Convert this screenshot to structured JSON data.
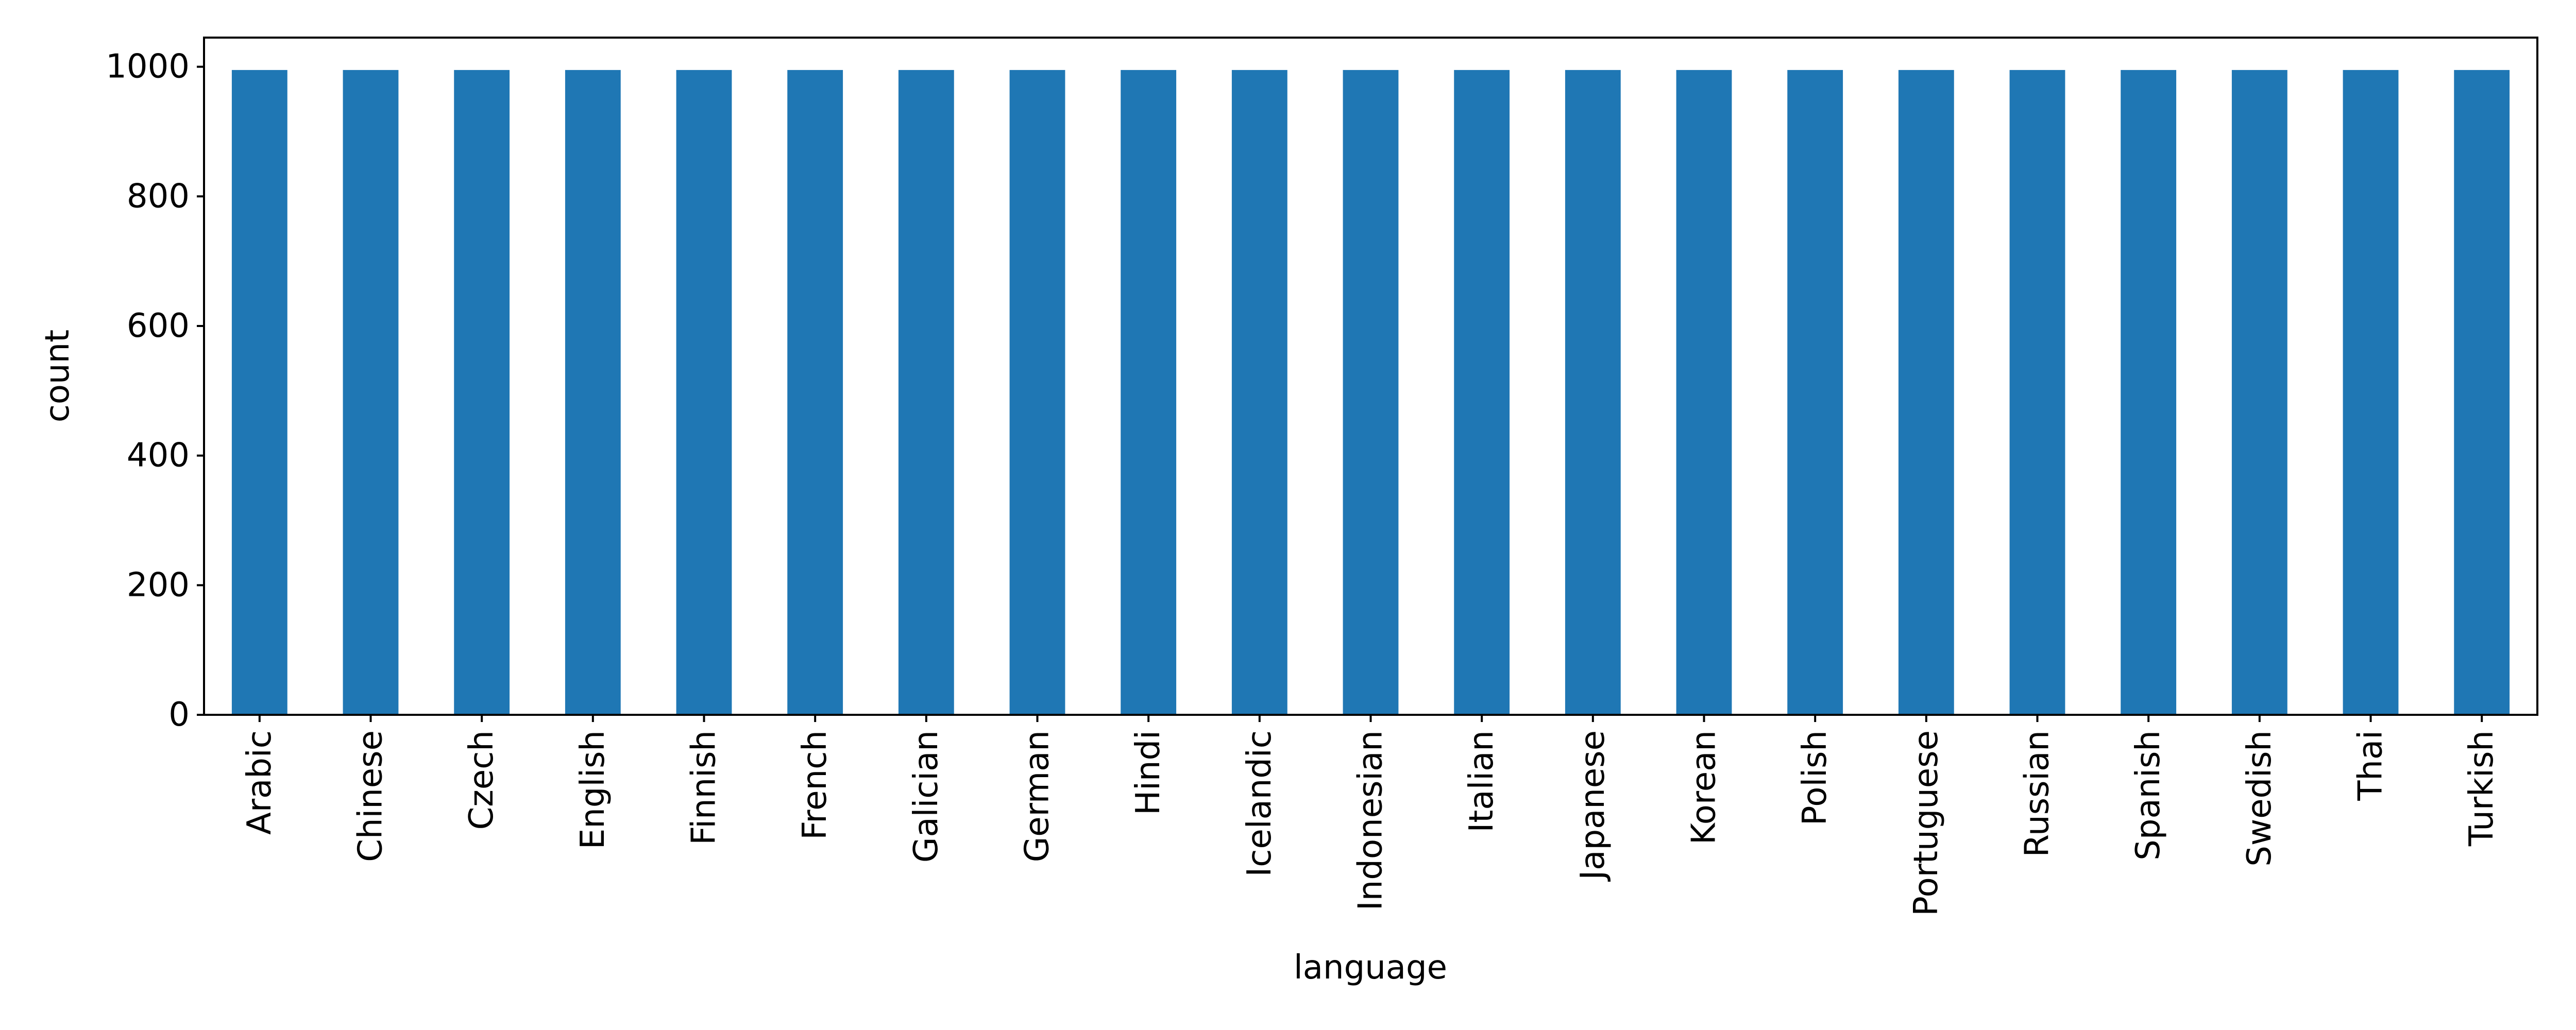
{
  "chart_data": {
    "type": "bar",
    "title": "",
    "xlabel": "language",
    "ylabel": "count",
    "categories": [
      "Arabic",
      "Chinese",
      "Czech",
      "English",
      "Finnish",
      "French",
      "Galician",
      "German",
      "Hindi",
      "Icelandic",
      "Indonesian",
      "Italian",
      "Japanese",
      "Korean",
      "Polish",
      "Portuguese",
      "Russian",
      "Spanish",
      "Swedish",
      "Thai",
      "Turkish"
    ],
    "values": [
      995,
      995,
      995,
      995,
      995,
      995,
      995,
      995,
      995,
      995,
      995,
      995,
      995,
      995,
      995,
      995,
      995,
      995,
      995,
      995,
      995
    ],
    "ylim": [
      0,
      1045
    ],
    "yticks": [
      0,
      200,
      400,
      600,
      800,
      1000
    ],
    "grid": false,
    "legend": "none",
    "bar_color": "#1f77b4"
  }
}
